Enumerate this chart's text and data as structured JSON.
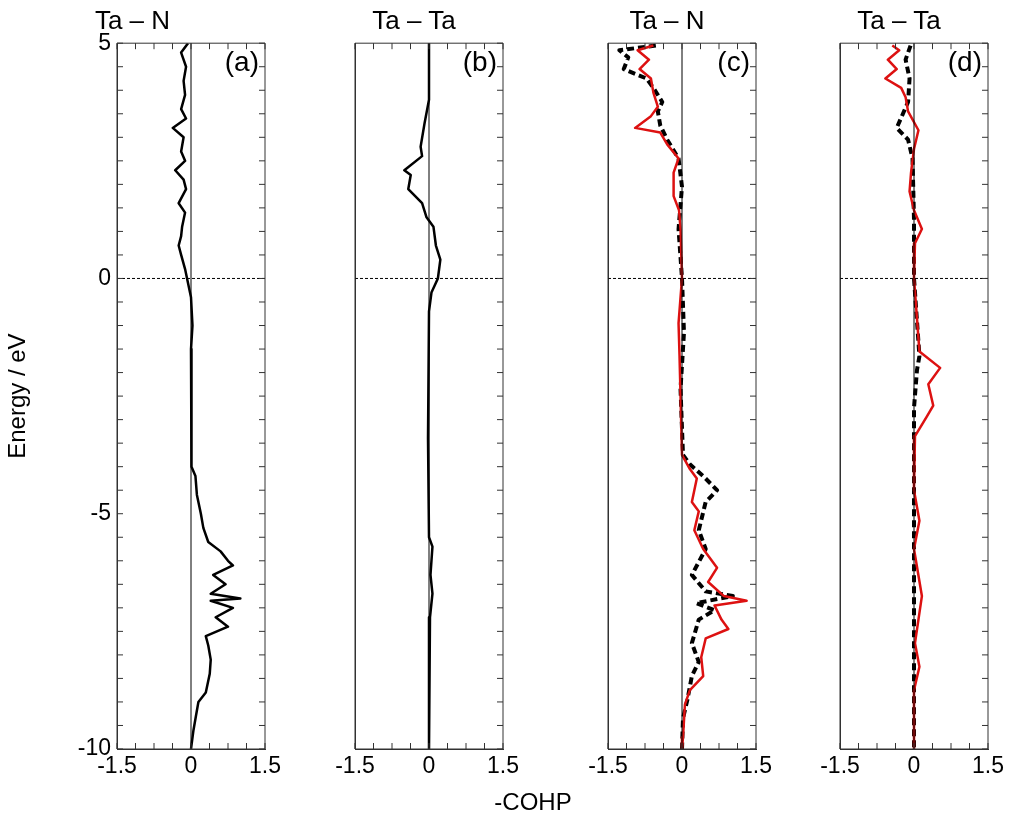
{
  "chart_data": [
    {
      "type": "line",
      "title": "Ta – N",
      "ylabel": "Energy / eV",
      "annotations": [
        "(a)"
      ],
      "xlim": [
        -1.5,
        1.5
      ],
      "ylim": [
        -10,
        5
      ],
      "xticks": [
        -1.5,
        {
          "value": -1.125,
          "label": null
        },
        {
          "value": -0.75,
          "label": null
        },
        {
          "value": -0.375,
          "label": null
        },
        0,
        {
          "value": 0.375,
          "label": null
        },
        {
          "value": 0.75,
          "label": null
        },
        {
          "value": 1.125,
          "label": null
        },
        1.5
      ],
      "yticks": [
        -10,
        {
          "value": -9.5,
          "label": null
        },
        {
          "value": -9,
          "label": null
        },
        {
          "value": -8.5,
          "label": null
        },
        {
          "value": -8,
          "label": null
        },
        {
          "value": -7.5,
          "label": null
        },
        {
          "value": -7,
          "label": null
        },
        {
          "value": -6.5,
          "label": null
        },
        {
          "value": -6,
          "label": null
        },
        {
          "value": -5.5,
          "label": null
        },
        -5,
        {
          "value": -4.5,
          "label": null
        },
        {
          "value": -4,
          "label": null
        },
        {
          "value": -3.5,
          "label": null
        },
        {
          "value": -3,
          "label": null
        },
        {
          "value": -2.5,
          "label": null
        },
        {
          "value": -2,
          "label": null
        },
        {
          "value": -1.5,
          "label": null
        },
        {
          "value": -1,
          "label": null
        },
        {
          "value": -0.5,
          "label": null
        },
        0,
        {
          "value": 0.5,
          "label": null
        },
        {
          "value": 1,
          "label": null
        },
        {
          "value": 1.5,
          "label": null
        },
        {
          "value": 2,
          "label": null
        },
        {
          "value": 2.5,
          "label": null
        },
        {
          "value": 3,
          "label": null
        },
        {
          "value": 3.5,
          "label": null
        },
        {
          "value": 4,
          "label": null
        },
        {
          "value": 4.5,
          "label": null
        },
        5
      ],
      "ref_lines": [
        {
          "axis": "x",
          "value": 0,
          "color": "#000000",
          "line_style": "solid"
        },
        {
          "axis": "y",
          "value": 0,
          "color": "#000000",
          "line_style": "dashed"
        }
      ],
      "series": [
        {
          "color": "#000000",
          "line_style": "solid",
          "x": [
            -0.06,
            -0.2,
            -0.1,
            -0.15,
            -0.12,
            -0.2,
            -0.1,
            -0.37,
            -0.15,
            -0.2,
            -0.12,
            -0.32,
            -0.15,
            -0.1,
            -0.25,
            -0.12,
            -0.18,
            -0.2,
            -0.25,
            -0.2,
            -0.12,
            -0.08,
            0,
            0.03,
            0,
            0.01,
            0.09,
            0.12,
            0.2,
            0.25,
            0.35,
            0.6,
            0.75,
            0.85,
            0.45,
            0.7,
            0.4,
            1.0,
            0.4,
            0.85,
            0.5,
            0.75,
            0.3,
            0.35,
            0.4,
            0.38,
            0.3,
            0.15,
            0.1,
            0.05,
            0
          ],
          "values": [
            5,
            4.8,
            4.5,
            4.2,
            3.9,
            3.6,
            3.4,
            3.2,
            3,
            2.7,
            2.5,
            2.3,
            2.1,
            1.9,
            1.6,
            1.4,
            1.1,
            0.9,
            0.7,
            0.5,
            0.2,
            0,
            -0.4,
            -1,
            -1.5,
            -4,
            -4.2,
            -4.6,
            -5,
            -5.3,
            -5.6,
            -5.8,
            -6,
            -6.1,
            -6.3,
            -6.5,
            -6.7,
            -6.8,
            -6.85,
            -7,
            -7.2,
            -7.4,
            -7.6,
            -7.8,
            -8.1,
            -8.4,
            -8.8,
            -9,
            -9.3,
            -9.6,
            -10
          ]
        }
      ]
    },
    {
      "type": "line",
      "title": "Ta – Ta",
      "xlabel": "-COHP",
      "annotations": [
        "(b)"
      ],
      "tick_labels": "x",
      "xlim": [
        -1.5,
        1.5
      ],
      "ylim": [
        -10,
        5
      ],
      "xticks": [
        -1.5,
        {
          "value": -1.125,
          "label": null
        },
        {
          "value": -0.75,
          "label": null
        },
        {
          "value": -0.375,
          "label": null
        },
        0,
        {
          "value": 0.375,
          "label": null
        },
        {
          "value": 0.75,
          "label": null
        },
        {
          "value": 1.125,
          "label": null
        },
        1.5
      ],
      "yticks": [
        {
          "value": -10,
          "label": null
        },
        {
          "value": -9.5,
          "label": null
        },
        {
          "value": -9,
          "label": null
        },
        {
          "value": -8.5,
          "label": null
        },
        {
          "value": -8,
          "label": null
        },
        {
          "value": -7.5,
          "label": null
        },
        {
          "value": -7,
          "label": null
        },
        {
          "value": -6.5,
          "label": null
        },
        {
          "value": -6,
          "label": null
        },
        {
          "value": -5.5,
          "label": null
        },
        {
          "value": -5,
          "label": null
        },
        {
          "value": -4.5,
          "label": null
        },
        {
          "value": -4,
          "label": null
        },
        {
          "value": -3.5,
          "label": null
        },
        {
          "value": -3,
          "label": null
        },
        {
          "value": -2.5,
          "label": null
        },
        {
          "value": -2,
          "label": null
        },
        {
          "value": -1.5,
          "label": null
        },
        {
          "value": -1,
          "label": null
        },
        {
          "value": -0.5,
          "label": null
        },
        {
          "value": 0,
          "label": null
        },
        {
          "value": 0.5,
          "label": null
        },
        {
          "value": 1,
          "label": null
        },
        {
          "value": 1.5,
          "label": null
        },
        {
          "value": 2,
          "label": null
        },
        {
          "value": 2.5,
          "label": null
        },
        {
          "value": 3,
          "label": null
        },
        {
          "value": 3.5,
          "label": null
        },
        {
          "value": 4,
          "label": null
        },
        {
          "value": 4.5,
          "label": null
        },
        {
          "value": 5,
          "label": null
        }
      ],
      "ref_lines": [
        {
          "axis": "x",
          "value": 0,
          "color": "#000000",
          "line_style": "solid"
        },
        {
          "axis": "y",
          "value": 0,
          "color": "#000000",
          "line_style": "dashed"
        }
      ],
      "series": [
        {
          "color": "#000000",
          "line_style": "solid",
          "x": [
            0,
            0,
            -0.09,
            -0.17,
            -0.14,
            -0.5,
            -0.37,
            -0.42,
            -0.14,
            -0.05,
            0.09,
            0.14,
            0.23,
            0.18,
            0.05,
            0,
            -0.02,
            0,
            0.07,
            0.03,
            0.07,
            0.02,
            0
          ],
          "values": [
            5,
            3.8,
            3.3,
            2.8,
            2.6,
            2.3,
            2.2,
            1.9,
            1.6,
            1.3,
            1.1,
            0.7,
            0.4,
            0,
            -0.3,
            -0.7,
            -3.4,
            -5.5,
            -5.7,
            -6.3,
            -6.7,
            -7.2,
            -10
          ]
        }
      ]
    },
    {
      "type": "line",
      "title": "Ta – N",
      "annotations": [
        "(c)"
      ],
      "tick_labels": "x",
      "xlim": [
        -1.5,
        1.5
      ],
      "ylim": [
        -10,
        5
      ],
      "xticks": [
        -1.5,
        {
          "value": -1.125,
          "label": null
        },
        {
          "value": -0.75,
          "label": null
        },
        {
          "value": -0.375,
          "label": null
        },
        0,
        {
          "value": 0.375,
          "label": null
        },
        {
          "value": 0.75,
          "label": null
        },
        {
          "value": 1.125,
          "label": null
        },
        1.5
      ],
      "yticks": [
        {
          "value": -10,
          "label": null
        },
        {
          "value": -9.5,
          "label": null
        },
        {
          "value": -9,
          "label": null
        },
        {
          "value": -8.5,
          "label": null
        },
        {
          "value": -8,
          "label": null
        },
        {
          "value": -7.5,
          "label": null
        },
        {
          "value": -7,
          "label": null
        },
        {
          "value": -6.5,
          "label": null
        },
        {
          "value": -6,
          "label": null
        },
        {
          "value": -5.5,
          "label": null
        },
        {
          "value": -5,
          "label": null
        },
        {
          "value": -4.5,
          "label": null
        },
        {
          "value": -4,
          "label": null
        },
        {
          "value": -3.5,
          "label": null
        },
        {
          "value": -3,
          "label": null
        },
        {
          "value": -2.5,
          "label": null
        },
        {
          "value": -2,
          "label": null
        },
        {
          "value": -1.5,
          "label": null
        },
        {
          "value": -1,
          "label": null
        },
        {
          "value": -0.5,
          "label": null
        },
        {
          "value": 0,
          "label": null
        },
        {
          "value": 0.5,
          "label": null
        },
        {
          "value": 1,
          "label": null
        },
        {
          "value": 1.5,
          "label": null
        },
        {
          "value": 2,
          "label": null
        },
        {
          "value": 2.5,
          "label": null
        },
        {
          "value": 3,
          "label": null
        },
        {
          "value": 3.5,
          "label": null
        },
        {
          "value": 4,
          "label": null
        },
        {
          "value": 4.5,
          "label": null
        },
        {
          "value": 5,
          "label": null
        }
      ],
      "ref_lines": [
        {
          "axis": "x",
          "value": 0,
          "color": "#000000",
          "line_style": "solid"
        },
        {
          "axis": "y",
          "value": 0,
          "color": "#000000",
          "line_style": "dashed"
        }
      ],
      "series": [
        {
          "color": "#dd1111",
          "line_style": "solid",
          "x": [
            -0.58,
            -0.9,
            -0.67,
            -0.86,
            -0.63,
            -0.58,
            -0.49,
            -0.63,
            -0.95,
            -0.44,
            -0.3,
            -0.07,
            -0.17,
            -0.17,
            -0.06,
            -0.03,
            0,
            -0.07,
            -0.05,
            0,
            0.16,
            0.3,
            0.2,
            0.34,
            0.25,
            0.43,
            0.71,
            0.53,
            0.85,
            1.31,
            0.66,
            0.8,
            0.94,
            0.48,
            0.39,
            0.43,
            0.16,
            0.06,
            0.02,
            0
          ],
          "values": [
            4.95,
            4.85,
            4.65,
            4.45,
            4.25,
            3.95,
            3.65,
            3.45,
            3.2,
            3.1,
            2.85,
            2.55,
            2.25,
            1.75,
            1.45,
            1.05,
            0,
            -0.95,
            -1.65,
            -3.75,
            -4.05,
            -4.25,
            -4.75,
            -4.95,
            -5.35,
            -5.75,
            -6.15,
            -6.45,
            -6.75,
            -6.85,
            -6.95,
            -7.25,
            -7.45,
            -7.65,
            -8.05,
            -8.45,
            -8.75,
            -9.05,
            -9.75,
            -10
          ]
        },
        {
          "color": "#000000",
          "line_style": "dashed",
          "x": [
            -0.53,
            -1.27,
            -1.09,
            -1.18,
            -0.72,
            -0.58,
            -0.4,
            -0.49,
            -0.44,
            -0.3,
            -0.07,
            0,
            -0.07,
            0,
            0.04,
            -0.03,
            0.02,
            0.16,
            0.43,
            0.71,
            0.48,
            0.34,
            0.48,
            0.2,
            0.48,
            1.03,
            0.29,
            0.66,
            0.34,
            0.2,
            0.34,
            0.2,
            0.11,
            0.02,
            0
          ],
          "values": [
            4.95,
            4.85,
            4.7,
            4.45,
            4.25,
            4.05,
            3.75,
            3.55,
            3.25,
            2.95,
            2.55,
            1.95,
            1.05,
            0,
            -1.15,
            -2.35,
            -3.75,
            -3.95,
            -4.2,
            -4.5,
            -4.75,
            -5.35,
            -5.75,
            -6.3,
            -6.65,
            -6.75,
            -6.9,
            -7.05,
            -7.25,
            -7.75,
            -8.15,
            -8.45,
            -8.95,
            -9.35,
            -10
          ]
        }
      ]
    },
    {
      "type": "line",
      "title": "Ta – Ta",
      "annotations": [
        "(d)"
      ],
      "tick_labels": "x",
      "xlim": [
        -1.5,
        1.5
      ],
      "ylim": [
        -10,
        5
      ],
      "xticks": [
        -1.5,
        {
          "value": -1.125,
          "label": null
        },
        {
          "value": -0.75,
          "label": null
        },
        {
          "value": -0.375,
          "label": null
        },
        0,
        {
          "value": 0.375,
          "label": null
        },
        {
          "value": 0.75,
          "label": null
        },
        {
          "value": 1.125,
          "label": null
        },
        1.5
      ],
      "yticks": [
        {
          "value": -10,
          "label": null
        },
        {
          "value": -9.5,
          "label": null
        },
        {
          "value": -9,
          "label": null
        },
        {
          "value": -8.5,
          "label": null
        },
        {
          "value": -8,
          "label": null
        },
        {
          "value": -7.5,
          "label": null
        },
        {
          "value": -7,
          "label": null
        },
        {
          "value": -6.5,
          "label": null
        },
        {
          "value": -6,
          "label": null
        },
        {
          "value": -5.5,
          "label": null
        },
        {
          "value": -5,
          "label": null
        },
        {
          "value": -4.5,
          "label": null
        },
        {
          "value": -4,
          "label": null
        },
        {
          "value": -3.5,
          "label": null
        },
        {
          "value": -3,
          "label": null
        },
        {
          "value": -2.5,
          "label": null
        },
        {
          "value": -2,
          "label": null
        },
        {
          "value": -1.5,
          "label": null
        },
        {
          "value": -1,
          "label": null
        },
        {
          "value": -0.5,
          "label": null
        },
        {
          "value": 0,
          "label": null
        },
        {
          "value": 0.5,
          "label": null
        },
        {
          "value": 1,
          "label": null
        },
        {
          "value": 1.5,
          "label": null
        },
        {
          "value": 2,
          "label": null
        },
        {
          "value": 2.5,
          "label": null
        },
        {
          "value": 3,
          "label": null
        },
        {
          "value": 3.5,
          "label": null
        },
        {
          "value": 4,
          "label": null
        },
        {
          "value": 4.5,
          "label": null
        },
        {
          "value": 5,
          "label": null
        }
      ],
      "ref_lines": [
        {
          "axis": "x",
          "value": 0,
          "color": "#000000",
          "line_style": "solid"
        },
        {
          "axis": "y",
          "value": 0,
          "color": "#000000",
          "line_style": "dashed"
        }
      ],
      "series": [
        {
          "color": "#dd1111",
          "line_style": "solid",
          "x": [
            -0.44,
            -0.3,
            -0.53,
            -0.35,
            -0.58,
            -0.26,
            -0.17,
            -0.12,
            0.09,
            0,
            -0.06,
            -0.09,
            0,
            0.16,
            0.02,
            0,
            0.11,
            0.53,
            0.29,
            0.39,
            0.25,
            0.02,
            0,
            0.11,
            0,
            0.16,
            0.09,
            0.02,
            0.11,
            0,
            0
          ],
          "values": [
            4.95,
            4.85,
            4.65,
            4.45,
            4.25,
            4.05,
            3.85,
            3.55,
            3.15,
            2.75,
            2.25,
            1.85,
            1.45,
            1.05,
            0.75,
            0,
            -1.55,
            -1.9,
            -2.25,
            -2.7,
            -2.95,
            -3.35,
            -4.5,
            -5.15,
            -5.75,
            -6.75,
            -7.25,
            -7.75,
            -8.25,
            -8.75,
            -10
          ]
        },
        {
          "color": "#000000",
          "line_style": "dashed",
          "x": [
            -0.07,
            -0.17,
            -0.09,
            -0.12,
            -0.35,
            -0.12,
            -0.03,
            0,
            0,
            0.11,
            0.06,
            0,
            0
          ],
          "values": [
            4.95,
            4.65,
            4.25,
            3.75,
            3.2,
            2.95,
            2.55,
            1.25,
            0,
            -1.65,
            -1.95,
            -2.75,
            -10
          ]
        }
      ]
    }
  ]
}
